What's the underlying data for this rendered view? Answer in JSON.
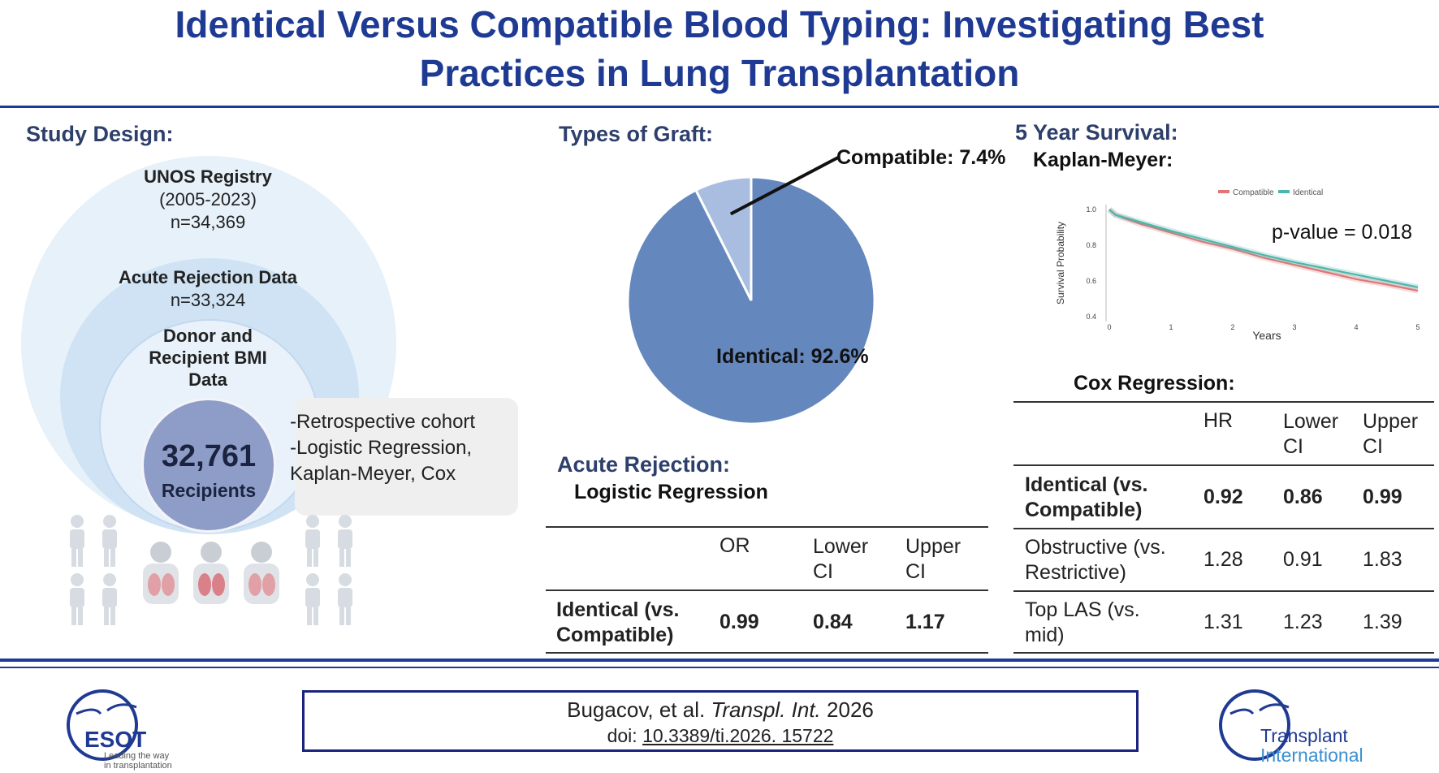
{
  "title": {
    "line1": "Identical Versus Compatible Blood Typing: Investigating Best",
    "line2": "Practices in Lung Transplantation"
  },
  "study_design": {
    "heading": "Study Design:",
    "registry": {
      "name": "UNOS Registry",
      "years": "(2005-2023)",
      "n": "n=34,369"
    },
    "acute": {
      "name": "Acute Rejection Data",
      "n": "n=33,324"
    },
    "bmi": {
      "line1": "Donor and",
      "line2": "Recipient BMI",
      "line3": "Data"
    },
    "recipients": {
      "count": "32,761",
      "label": "Recipients"
    },
    "bullets": [
      "-Retrospective cohort",
      "-Logistic Regression,",
      "Kaplan-Meyer, Cox"
    ]
  },
  "graft": {
    "heading": "Types of Graft:",
    "compatible_label": "Compatible: 7.4%",
    "identical_label": "Identical: 92.6%"
  },
  "acute_rejection": {
    "heading": "Acute Rejection:",
    "subheading": "Logistic Regression",
    "headers": [
      "OR",
      "Lower CI",
      "Upper CI"
    ],
    "row": {
      "label": "Identical (vs. Compatible)",
      "or": "0.99",
      "lower": "0.84",
      "upper": "1.17"
    }
  },
  "survival": {
    "heading": "5 Year Survival:",
    "subheading": "Kaplan-Meyer:",
    "pvalue": "p-value = 0.018"
  },
  "cox": {
    "heading": "Cox Regression:",
    "headers": [
      "HR",
      "Lower CI",
      "Upper CI"
    ],
    "rows": [
      {
        "label": "Identical (vs. Compatible)",
        "hr": "0.92",
        "lower": "0.86",
        "upper": "0.99",
        "bold": true
      },
      {
        "label": "Obstructive (vs. Restrictive)",
        "hr": "1.28",
        "lower": "0.91",
        "upper": "1.83",
        "bold": false
      },
      {
        "label": "Top LAS (vs. mid)",
        "hr": "1.31",
        "lower": "1.23",
        "upper": "1.39",
        "bold": false
      }
    ]
  },
  "citation": {
    "authors": "Bugacov, et al.",
    "journal": "Transpl. Int.",
    "year": "2026",
    "doi_label": "doi:",
    "doi": "10.3389/ti.2026. 15722"
  },
  "logos": {
    "esot": {
      "name": "ESOT",
      "tag1": "Leading the way",
      "tag2": "in transplantation"
    },
    "ti": {
      "line1": "Transplant",
      "line2": "International"
    }
  },
  "colors": {
    "title": "#1f3a93",
    "compatible": "#e57373",
    "identical": "#4db6ac",
    "pie_identical": "#6487bd",
    "pie_compatible": "#a9bde0"
  },
  "chart_data": [
    {
      "type": "pie",
      "title": "Types of Graft:",
      "slices": [
        {
          "name": "Identical",
          "value": 92.6
        },
        {
          "name": "Compatible",
          "value": 7.4
        }
      ]
    },
    {
      "type": "line",
      "title": "Kaplan-Meyer:",
      "xlabel": "Years",
      "ylabel": "Survival Probability",
      "xlim": [
        0,
        5
      ],
      "ylim": [
        0.4,
        1.0
      ],
      "xticks": [
        "0",
        "1",
        "2",
        "3",
        "4",
        "5"
      ],
      "yticks": [
        "0.4",
        "0.6",
        "0.8",
        "1.0"
      ],
      "legend": "top",
      "annotation": "p-value = 0.018",
      "series": [
        {
          "name": "Compatible",
          "x": [
            0,
            0.1,
            0.25,
            0.5,
            1,
            1.5,
            2,
            2.5,
            3,
            3.5,
            4,
            4.5,
            5
          ],
          "y": [
            1.0,
            0.97,
            0.95,
            0.92,
            0.87,
            0.82,
            0.78,
            0.73,
            0.69,
            0.65,
            0.61,
            0.58,
            0.545
          ]
        },
        {
          "name": "Identical",
          "x": [
            0,
            0.1,
            0.25,
            0.5,
            1,
            1.5,
            2,
            2.5,
            3,
            3.5,
            4,
            4.5,
            5
          ],
          "y": [
            1.0,
            0.97,
            0.955,
            0.93,
            0.88,
            0.835,
            0.79,
            0.745,
            0.705,
            0.67,
            0.635,
            0.6,
            0.565
          ]
        }
      ]
    }
  ]
}
